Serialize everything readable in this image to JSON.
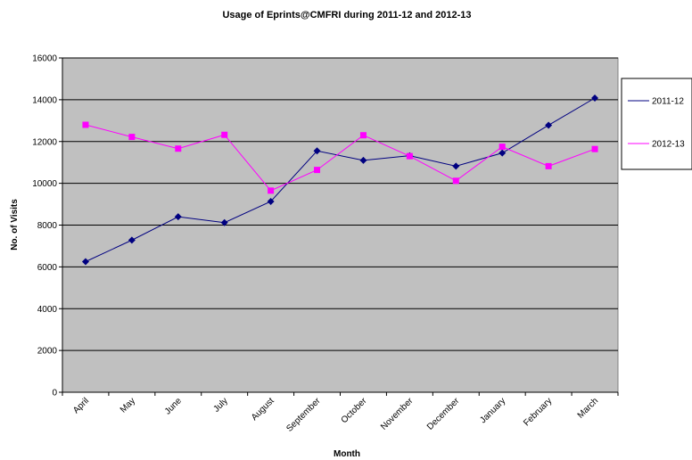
{
  "chart_data": {
    "type": "line",
    "title": "Usage of Eprints@CMFRI during 2011-12 and 2012-13",
    "x_label": "Month",
    "y_label": "No. of Visits",
    "categories": [
      "April",
      "May",
      "June",
      "July",
      "August",
      "September",
      "October",
      "November",
      "December",
      "January",
      "February",
      "March"
    ],
    "series": [
      {
        "name": "2011-12",
        "color": "#000080",
        "marker": "diamond",
        "values": [
          6250,
          7280,
          8400,
          8120,
          9130,
          11550,
          11100,
          11320,
          10820,
          11450,
          12780,
          14080
        ]
      },
      {
        "name": "2012-13",
        "color": "#ff00ff",
        "marker": "square",
        "values": [
          12800,
          12220,
          11660,
          12320,
          9650,
          10640,
          12300,
          11300,
          10120,
          11750,
          10820,
          11640
        ]
      }
    ],
    "ylim": [
      0,
      16000
    ],
    "yticks": [
      0,
      2000,
      4000,
      6000,
      8000,
      10000,
      12000,
      14000,
      16000
    ],
    "grid": true,
    "legend": "right"
  }
}
